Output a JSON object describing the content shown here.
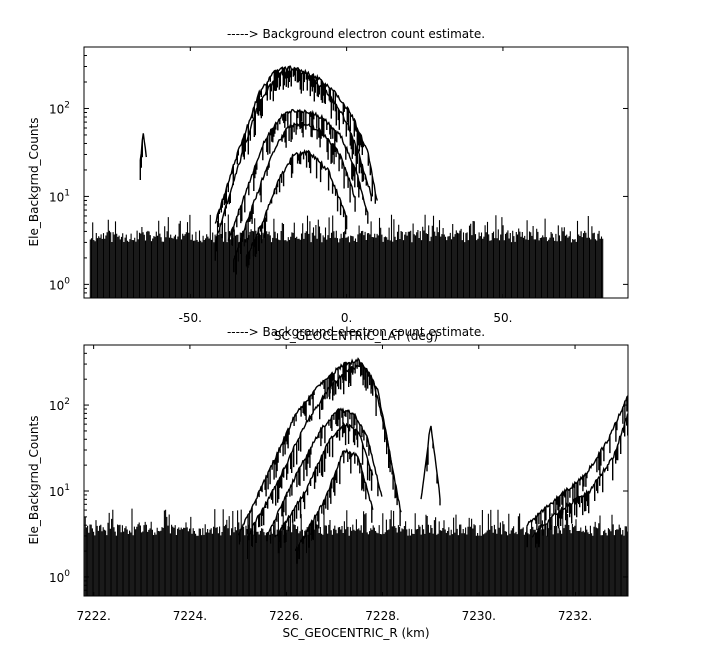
{
  "chart_data": [
    {
      "type": "line",
      "title": "-----> Background electron count estimate.",
      "xlabel": "SC_GEOCENTRIC_LAT (deg)",
      "ylabel": "Ele_Backgrnd_Counts",
      "yscale": "log",
      "xlim": [
        -84,
        90
      ],
      "ylim": [
        0.7,
        500
      ],
      "xticks": [
        -50,
        0,
        50
      ],
      "xtick_labels": [
        "-50.",
        "0.",
        "50."
      ],
      "yticks": [
        1,
        10,
        100
      ],
      "ytick_labels": [
        "10^0",
        "10^1",
        "10^2"
      ],
      "grid": false,
      "noise_floor": 3,
      "data_x_extent": [
        -82,
        82
      ],
      "series": [
        {
          "x": [
            -42,
            -35,
            -28,
            -23,
            -18,
            -12,
            -6,
            0,
            4,
            8
          ],
          "values": [
            5,
            30,
            150,
            260,
            300,
            230,
            150,
            70,
            30,
            10
          ]
        },
        {
          "x": [
            -42,
            -35,
            -28,
            -22,
            -16,
            -10,
            -4,
            2,
            7,
            10
          ],
          "values": [
            3,
            20,
            120,
            240,
            280,
            230,
            160,
            80,
            30,
            8
          ]
        },
        {
          "x": [
            -38,
            -32,
            -26,
            -20,
            -14,
            -8,
            -2,
            3,
            7
          ],
          "values": [
            3,
            12,
            45,
            90,
            95,
            80,
            50,
            20,
            6
          ]
        },
        {
          "x": [
            -36,
            -30,
            -24,
            -19,
            -14,
            -8,
            -2,
            3
          ],
          "values": [
            2,
            8,
            30,
            60,
            70,
            55,
            30,
            9
          ]
        },
        {
          "x": [
            -32,
            -27,
            -22,
            -17,
            -12,
            -6,
            0
          ],
          "values": [
            2,
            5,
            15,
            30,
            32,
            20,
            6
          ]
        },
        {
          "x": [
            -66,
            -65,
            -64
          ],
          "values": [
            25,
            55,
            25
          ]
        }
      ]
    },
    {
      "type": "line",
      "title": "-----> Background electron count estimate.",
      "xlabel": "SC_GEOCENTRIC_R (km)",
      "ylabel": "Ele_Backgrnd_Counts",
      "yscale": "log",
      "xlim": [
        7221.8,
        7233.1
      ],
      "ylim": [
        0.6,
        500
      ],
      "xticks": [
        7222,
        7224,
        7226,
        7228,
        7230,
        7232
      ],
      "xtick_labels": [
        "7222.",
        "7224.",
        "7226.",
        "7228.",
        "7230.",
        "7232."
      ],
      "yticks": [
        1,
        10,
        100
      ],
      "ytick_labels": [
        "10^0",
        "10^1",
        "10^2"
      ],
      "grid": false,
      "noise_floor": 3,
      "data_x_extent": [
        7221.8,
        7233.1
      ],
      "series": [
        {
          "x": [
            7225.0,
            7225.6,
            7226.2,
            7226.8,
            7227.2,
            7227.5,
            7227.8,
            7228.1,
            7228.4
          ],
          "values": [
            3,
            15,
            80,
            200,
            300,
            330,
            200,
            40,
            5
          ]
        },
        {
          "x": [
            7225.2,
            7225.8,
            7226.4,
            7226.9,
            7227.3,
            7227.6,
            7227.9,
            7228.2
          ],
          "values": [
            3,
            12,
            60,
            160,
            260,
            300,
            150,
            20
          ]
        },
        {
          "x": [
            7225.6,
            7226.2,
            7226.7,
            7227.1,
            7227.4,
            7227.7,
            7228.0
          ],
          "values": [
            3,
            15,
            50,
            90,
            80,
            40,
            8
          ]
        },
        {
          "x": [
            7225.8,
            7226.4,
            7226.9,
            7227.2,
            7227.5,
            7227.8
          ],
          "values": [
            3,
            10,
            40,
            60,
            50,
            15
          ]
        },
        {
          "x": [
            7226.2,
            7226.8,
            7227.2,
            7227.5,
            7227.8
          ],
          "values": [
            2,
            8,
            30,
            25,
            6
          ]
        },
        {
          "x": [
            7228.8,
            7229.0,
            7229.2
          ],
          "values": [
            8,
            60,
            8
          ]
        },
        {
          "x": [
            7231.0,
            7231.6,
            7232.2,
            7232.7,
            7233.1
          ],
          "values": [
            4,
            8,
            15,
            40,
            130
          ]
        },
        {
          "x": [
            7231.1,
            7231.7,
            7232.3,
            7232.8,
            7233.1
          ],
          "values": [
            3,
            6,
            10,
            25,
            80
          ]
        }
      ]
    }
  ]
}
